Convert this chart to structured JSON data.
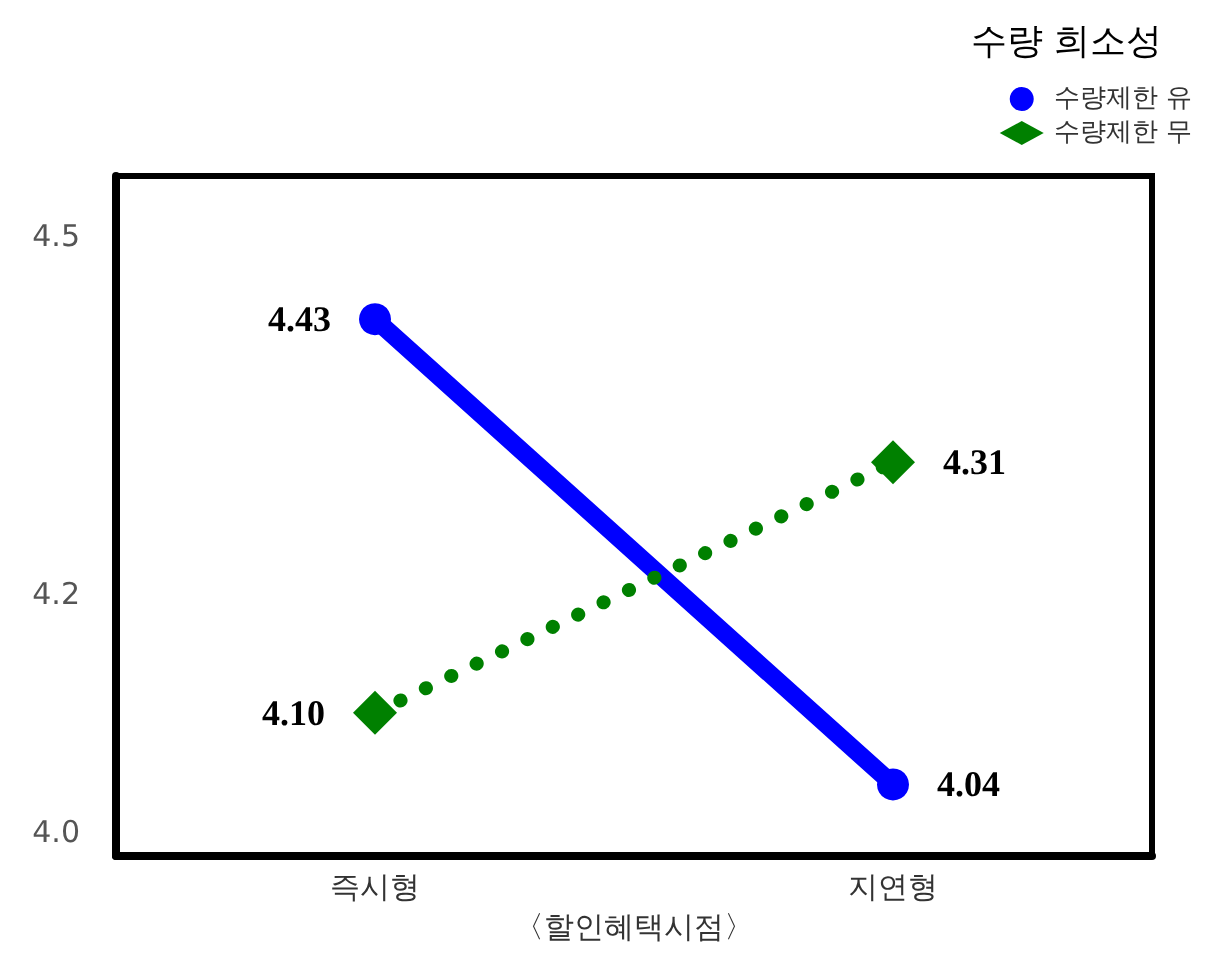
{
  "chart_data": {
    "type": "line",
    "xlabel": "〈할인혜택시점〉",
    "legend_title": "수량 희소성",
    "categories": [
      "즉시형",
      "지연형"
    ],
    "series": [
      {
        "name": "수량제한 유",
        "color": "#0000ff",
        "values": [
          4.43,
          4.04
        ],
        "value_labels": [
          "4.43",
          "4.04"
        ],
        "marker": "circle",
        "line_style": "solid"
      },
      {
        "name": "수량제한 무",
        "color": "#008000",
        "values": [
          4.1,
          4.31
        ],
        "value_labels": [
          "4.10",
          "4.31"
        ],
        "marker": "diamond",
        "line_style": "dotted"
      }
    ],
    "ylim": [
      3.98,
      4.55
    ],
    "yticks": [
      {
        "value": 4,
        "label": "4.0"
      },
      {
        "value": 4.2,
        "label": "4.2"
      },
      {
        "value": 4.5,
        "label": "4.5"
      }
    ],
    "grid": false,
    "legend": "top right"
  }
}
